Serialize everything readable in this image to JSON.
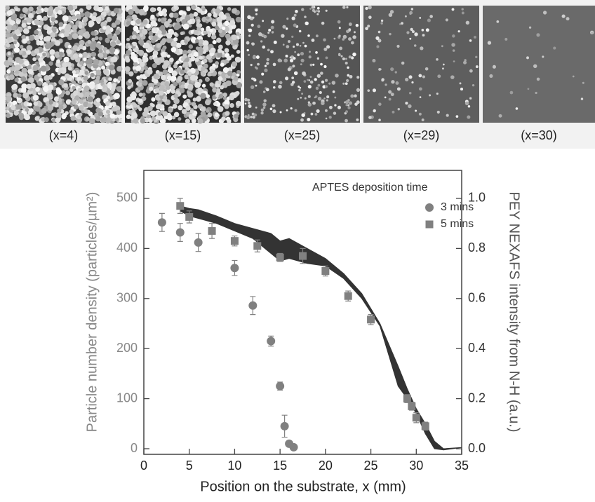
{
  "panels": [
    "(x=4)",
    "(x=15)",
    "(x=25)",
    "(x=29)",
    "(x=30)"
  ],
  "chart_data": {
    "type": "scatter",
    "xlabel": "Position on the substrate, x   (mm)",
    "ylabel": "Particle number density  (particles/µm²)",
    "y2label": "PEY NEXAFS intensity from N-H   (a.u.)",
    "legend_title": "APTES deposition time",
    "legend": "upper right",
    "xlim": [
      0,
      35
    ],
    "xticks": [
      0,
      5,
      10,
      15,
      20,
      25,
      30,
      35
    ],
    "ylim": [
      -11.2,
      556
    ],
    "yticks": [
      0,
      100,
      200,
      300,
      400,
      500
    ],
    "y2lim": [
      -0.0224,
      1.112
    ],
    "y2ticks": [
      {
        "value": 0,
        "label": "0.0"
      },
      0.2,
      0.4,
      0.6,
      0.8,
      {
        "value": 1,
        "label": "1.0"
      }
    ],
    "series": [
      {
        "name": "3 mins",
        "marker": "circle",
        "color": "#808080",
        "x": [
          2,
          4,
          6,
          10,
          12,
          14,
          15,
          15.5,
          16,
          16.5
        ],
        "values": [
          452,
          432,
          412,
          361,
          286,
          215,
          125,
          45,
          10,
          3
        ],
        "errors": [
          18,
          18,
          18,
          15,
          18,
          10,
          8,
          22,
          5,
          3
        ]
      },
      {
        "name": "5 mins",
        "marker": "square",
        "color": "#808080",
        "x": [
          4,
          5,
          7.5,
          10,
          12.5,
          15,
          17.5,
          20,
          22.5,
          25,
          29,
          29.5,
          30,
          31
        ],
        "values": [
          485,
          463,
          435,
          415,
          405,
          382,
          385,
          355,
          305,
          258,
          100,
          85,
          62,
          45
        ],
        "errors": [
          15,
          12,
          15,
          10,
          12,
          8,
          15,
          10,
          10,
          10,
          8,
          8,
          10,
          8
        ]
      }
    ],
    "band": {
      "axis": "y2",
      "color": "#333333",
      "x": [
        4,
        5,
        6,
        8,
        10,
        12,
        14,
        15,
        16,
        18,
        20,
        22,
        24,
        26,
        28,
        29,
        30,
        31,
        32,
        33,
        35
      ],
      "upper": [
        0.97,
        0.96,
        0.955,
        0.93,
        0.9,
        0.88,
        0.86,
        0.83,
        0.84,
        0.8,
        0.76,
        0.7,
        0.62,
        0.5,
        0.33,
        0.24,
        0.16,
        0.1,
        0.03,
        0,
        0.005
      ],
      "lower": [
        0.95,
        0.93,
        0.92,
        0.9,
        0.87,
        0.84,
        0.78,
        0.75,
        0.76,
        0.74,
        0.73,
        0.68,
        0.6,
        0.49,
        0.25,
        0.2,
        0.14,
        0.06,
        0,
        -0.005,
        0.005
      ]
    }
  }
}
